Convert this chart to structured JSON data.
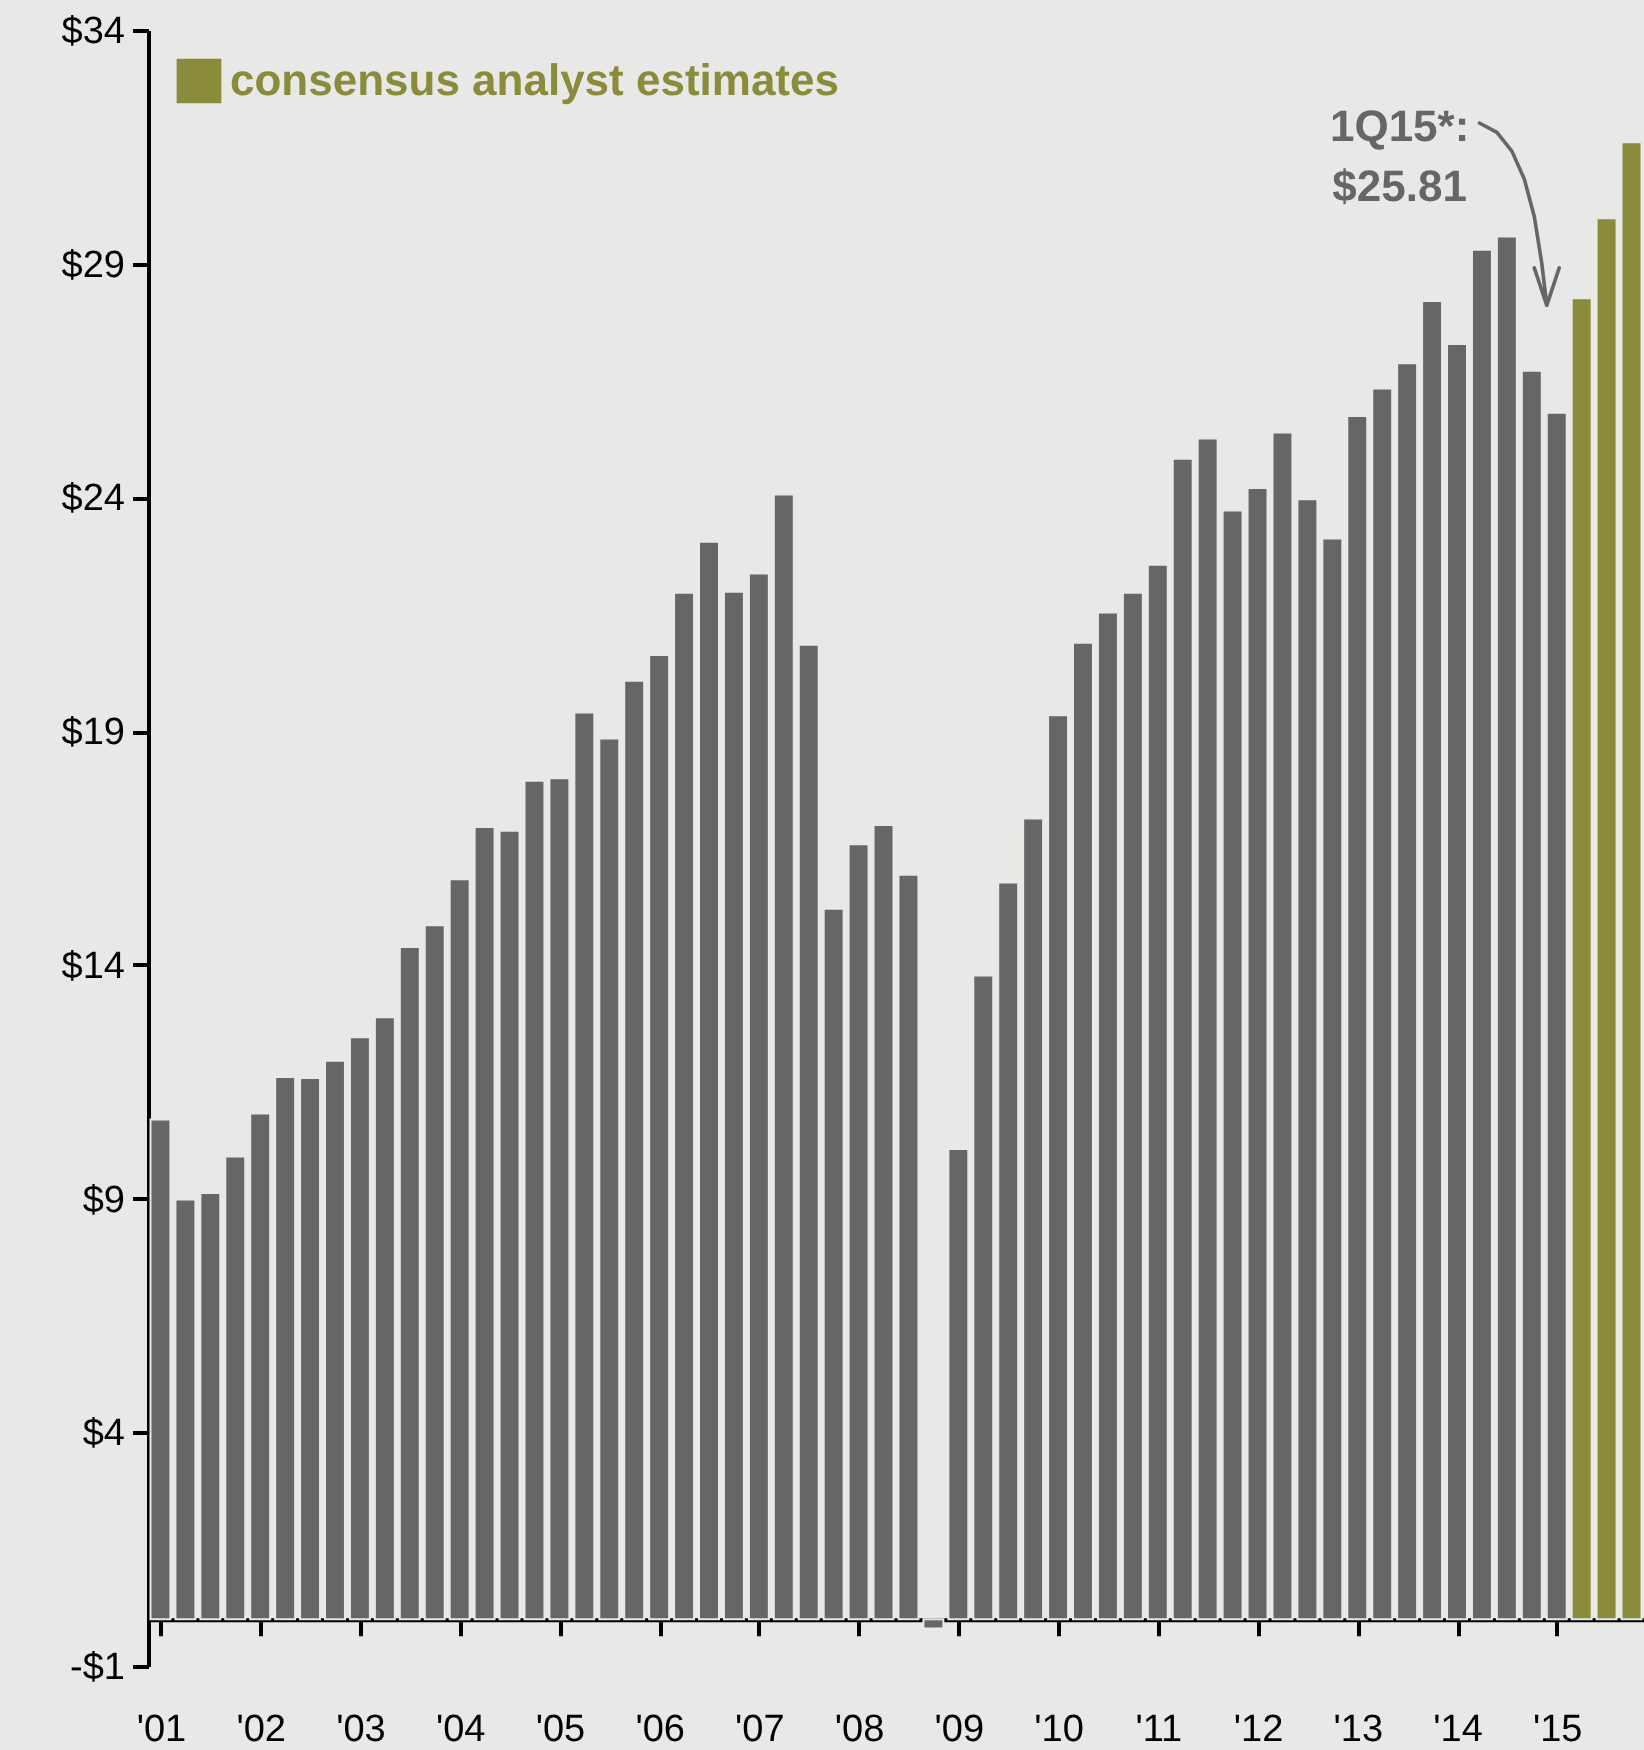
{
  "chart_data": {
    "type": "bar",
    "categories": [
      "'01",
      null,
      null,
      null,
      "'02",
      null,
      null,
      null,
      "'03",
      null,
      null,
      null,
      "'04",
      null,
      null,
      null,
      "'05",
      null,
      null,
      null,
      "'06",
      null,
      null,
      null,
      "'07",
      null,
      null,
      null,
      "'08",
      null,
      null,
      null,
      "'09",
      null,
      null,
      null,
      "'10",
      null,
      null,
      null,
      "'11",
      null,
      null,
      null,
      "'12",
      null,
      null,
      null,
      "'13",
      null,
      null,
      null,
      "'14",
      null,
      null,
      null,
      "'15",
      null,
      null,
      null
    ],
    "series": [
      {
        "color": "#666666",
        "values": [
          10.69,
          8.98,
          9.12,
          9.9,
          10.82,
          11.6,
          11.58,
          11.95,
          12.45,
          12.88,
          14.38,
          14.85,
          15.83,
          16.95,
          16.87,
          17.94,
          17.99,
          19.4,
          18.84,
          20.08,
          20.63,
          21.96,
          23.05,
          21.98,
          22.37,
          24.06,
          20.85,
          15.2,
          16.58,
          16.99,
          15.93,
          -0.2,
          10.06,
          13.77,
          15.76,
          17.13,
          19.34,
          20.89,
          21.54,
          21.96,
          22.56,
          24.83,
          25.26,
          23.72,
          24.2,
          25.39,
          23.96,
          23.12,
          25.74,
          26.33,
          26.87,
          28.2,
          27.28,
          29.3,
          29.58,
          26.71,
          25.81,
          null,
          null,
          null
        ]
      },
      {
        "name": "consensus analyst estimates",
        "color": "#8a8c3b",
        "values": [
          null,
          null,
          null,
          null,
          null,
          null,
          null,
          null,
          null,
          null,
          null,
          null,
          null,
          null,
          null,
          null,
          null,
          null,
          null,
          null,
          null,
          null,
          null,
          null,
          null,
          null,
          null,
          null,
          null,
          null,
          null,
          null,
          null,
          null,
          null,
          null,
          null,
          null,
          null,
          null,
          null,
          null,
          null,
          null,
          null,
          null,
          null,
          null,
          null,
          null,
          null,
          null,
          null,
          null,
          null,
          null,
          null,
          28.26,
          29.97,
          31.6
        ]
      }
    ],
    "ylim": [
      -1,
      34
    ],
    "yticks": [
      {
        "value": -1,
        "label": "-$1"
      },
      {
        "value": 4,
        "label": "$4"
      },
      {
        "value": 9,
        "label": "$9"
      },
      {
        "value": 14,
        "label": "$14"
      },
      {
        "value": 19,
        "label": "$19"
      },
      {
        "value": 24,
        "label": "$24"
      },
      {
        "value": 29,
        "label": "$29"
      },
      {
        "value": 34,
        "label": "$34"
      }
    ],
    "annotations": [
      "1Q15*:\n$25.81"
    ],
    "legend": "top left",
    "grid": false
  }
}
